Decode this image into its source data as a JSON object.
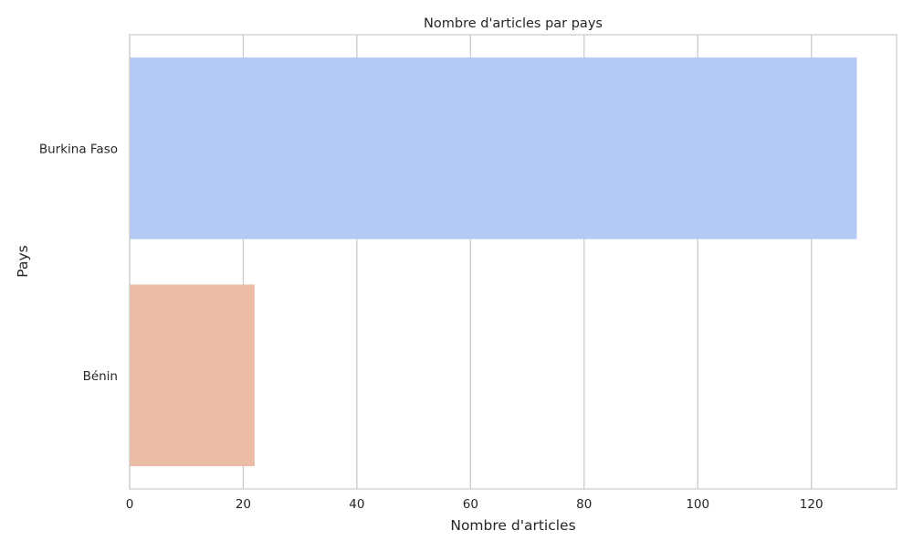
{
  "chart_data": {
    "type": "bar",
    "orientation": "horizontal",
    "title": "Nombre d'articles par pays",
    "xlabel": "Nombre d'articles",
    "ylabel": "Pays",
    "categories": [
      "Burkina Faso",
      "Bénin"
    ],
    "values": [
      128,
      22
    ],
    "bar_colors": [
      "#b5c9f5",
      "#edbca5"
    ],
    "xlim": [
      0,
      135
    ],
    "xticks": [
      0,
      20,
      40,
      60,
      80,
      100,
      120
    ],
    "grid": true,
    "grid_axis": "x",
    "grid_color": "#cccccc",
    "background": "#ffffff",
    "frame_color": "#cccccc",
    "text_color": "#262626"
  }
}
